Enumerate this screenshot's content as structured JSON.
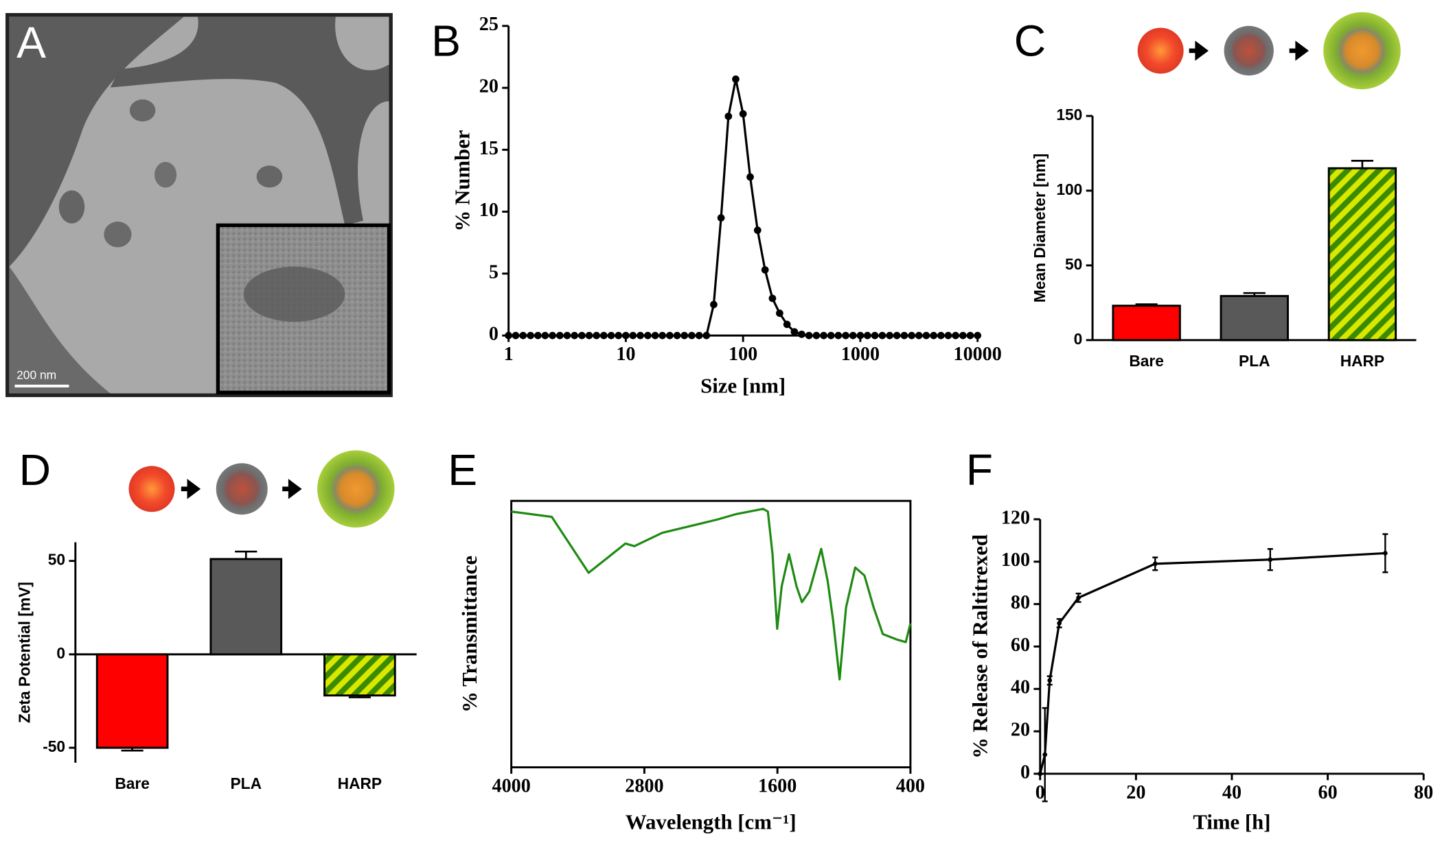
{
  "image_panel": {
    "panel": "A",
    "scale_bar": "200 nm"
  },
  "chart_data": [
    {
      "type": "line",
      "panel": "B",
      "xlabel": "Size [nm]",
      "ylabel": "% Number",
      "log_x": true,
      "markers": true,
      "color": "#000000",
      "x": [
        1,
        1.15,
        1.33,
        1.54,
        1.78,
        2.05,
        2.37,
        2.74,
        3.16,
        3.65,
        4.22,
        4.87,
        5.62,
        6.49,
        7.5,
        8.66,
        10,
        11.5,
        13.3,
        15.4,
        17.8,
        20.5,
        23.7,
        27.4,
        31.6,
        36.5,
        42.2,
        48.7,
        56.2,
        64.9,
        75,
        86.6,
        100,
        115,
        133,
        154,
        178,
        205,
        237,
        274,
        316,
        365,
        422,
        487,
        562,
        649,
        750,
        866,
        1000,
        1150,
        1330,
        1540,
        1780,
        2050,
        2370,
        2740,
        3160,
        3650,
        4220,
        4870,
        5620,
        6490,
        7500,
        8660,
        10000
      ],
      "values": [
        0,
        0,
        0,
        0,
        0,
        0,
        0,
        0,
        0,
        0,
        0,
        0,
        0,
        0,
        0,
        0,
        0,
        0,
        0,
        0,
        0,
        0,
        0,
        0,
        0,
        0,
        0,
        0,
        2.5,
        9.5,
        17.7,
        20.7,
        17.9,
        12.8,
        8.5,
        5.3,
        3.0,
        1.8,
        0.9,
        0.3,
        0.1,
        0,
        0,
        0,
        0,
        0,
        0,
        0,
        0,
        0,
        0,
        0,
        0,
        0,
        0,
        0,
        0,
        0,
        0,
        0,
        0,
        0,
        0,
        0,
        0
      ],
      "xlim": [
        1,
        10000
      ],
      "xticks": [
        1,
        10,
        100,
        1000,
        10000
      ],
      "ylim": [
        0,
        25
      ],
      "yticks": [
        0,
        5,
        10,
        15,
        20,
        25
      ]
    },
    {
      "type": "bar",
      "panel": "C",
      "ylabel": "Mean Diameter [nm]",
      "categories": [
        "Bare",
        "PLA",
        "HARP"
      ],
      "values": [
        23,
        29.5,
        115
      ],
      "errors": [
        1,
        2,
        5
      ],
      "colors": [
        "#ff0000",
        "#595959",
        "#d8e800"
      ],
      "hatch": [
        false,
        false,
        true
      ],
      "hatch_color": "#3b8a00",
      "ylim": [
        0,
        150
      ],
      "yticks": [
        0,
        50,
        100,
        150
      ]
    },
    {
      "type": "bar",
      "panel": "D",
      "ylabel": "Zeta Potential [mV]",
      "categories": [
        "Bare",
        "PLA",
        "HARP"
      ],
      "values": [
        -50,
        51,
        -22
      ],
      "errors": [
        1.5,
        4,
        1
      ],
      "colors": [
        "#ff0000",
        "#595959",
        "#d8e800"
      ],
      "hatch": [
        false,
        false,
        true
      ],
      "hatch_color": "#3b8a00",
      "ylim": [
        -58,
        60
      ],
      "yticks": [
        -50,
        0,
        50
      ]
    },
    {
      "type": "line",
      "panel": "E",
      "xlabel": "Wavelength [cm⁻¹]",
      "ylabel": "% Transmittance",
      "frame": true,
      "markers": false,
      "color": "#1f8a12",
      "x": [
        4000,
        3635,
        3303,
        2971,
        2890,
        2640,
        2142,
        1976,
        1728,
        1686,
        1644,
        1602,
        1561,
        1495,
        1428,
        1379,
        1312,
        1205,
        1147,
        1097,
        1039,
        981,
        898,
        815,
        732,
        649,
        525,
        442,
        400
      ],
      "values": [
        96,
        94,
        73,
        84,
        83,
        88,
        93,
        95,
        97,
        96,
        80,
        52,
        68,
        80,
        68,
        62,
        66,
        82,
        70,
        55,
        33,
        60,
        75,
        72,
        60,
        50,
        48,
        47,
        54
      ],
      "xlim": [
        4000,
        400
      ],
      "xticks": [
        4000,
        2800,
        1600,
        400
      ],
      "ylim": [
        0,
        100
      ]
    },
    {
      "type": "line",
      "panel": "F",
      "xlabel": "Time [h]",
      "ylabel": "% Release of Raltitrexed",
      "markers": true,
      "color": "#000000",
      "x": [
        0,
        1,
        2,
        4,
        8,
        24,
        48,
        72
      ],
      "values": [
        0,
        9,
        44,
        71,
        83,
        99,
        101,
        104
      ],
      "errors": [
        0,
        22,
        2,
        2,
        2,
        3,
        5,
        9
      ],
      "xlim": [
        0,
        80
      ],
      "xticks": [
        0,
        20,
        40,
        60,
        80
      ],
      "ylim": [
        0,
        120
      ],
      "yticks": [
        0,
        20,
        40,
        60,
        80,
        100,
        120
      ]
    }
  ]
}
